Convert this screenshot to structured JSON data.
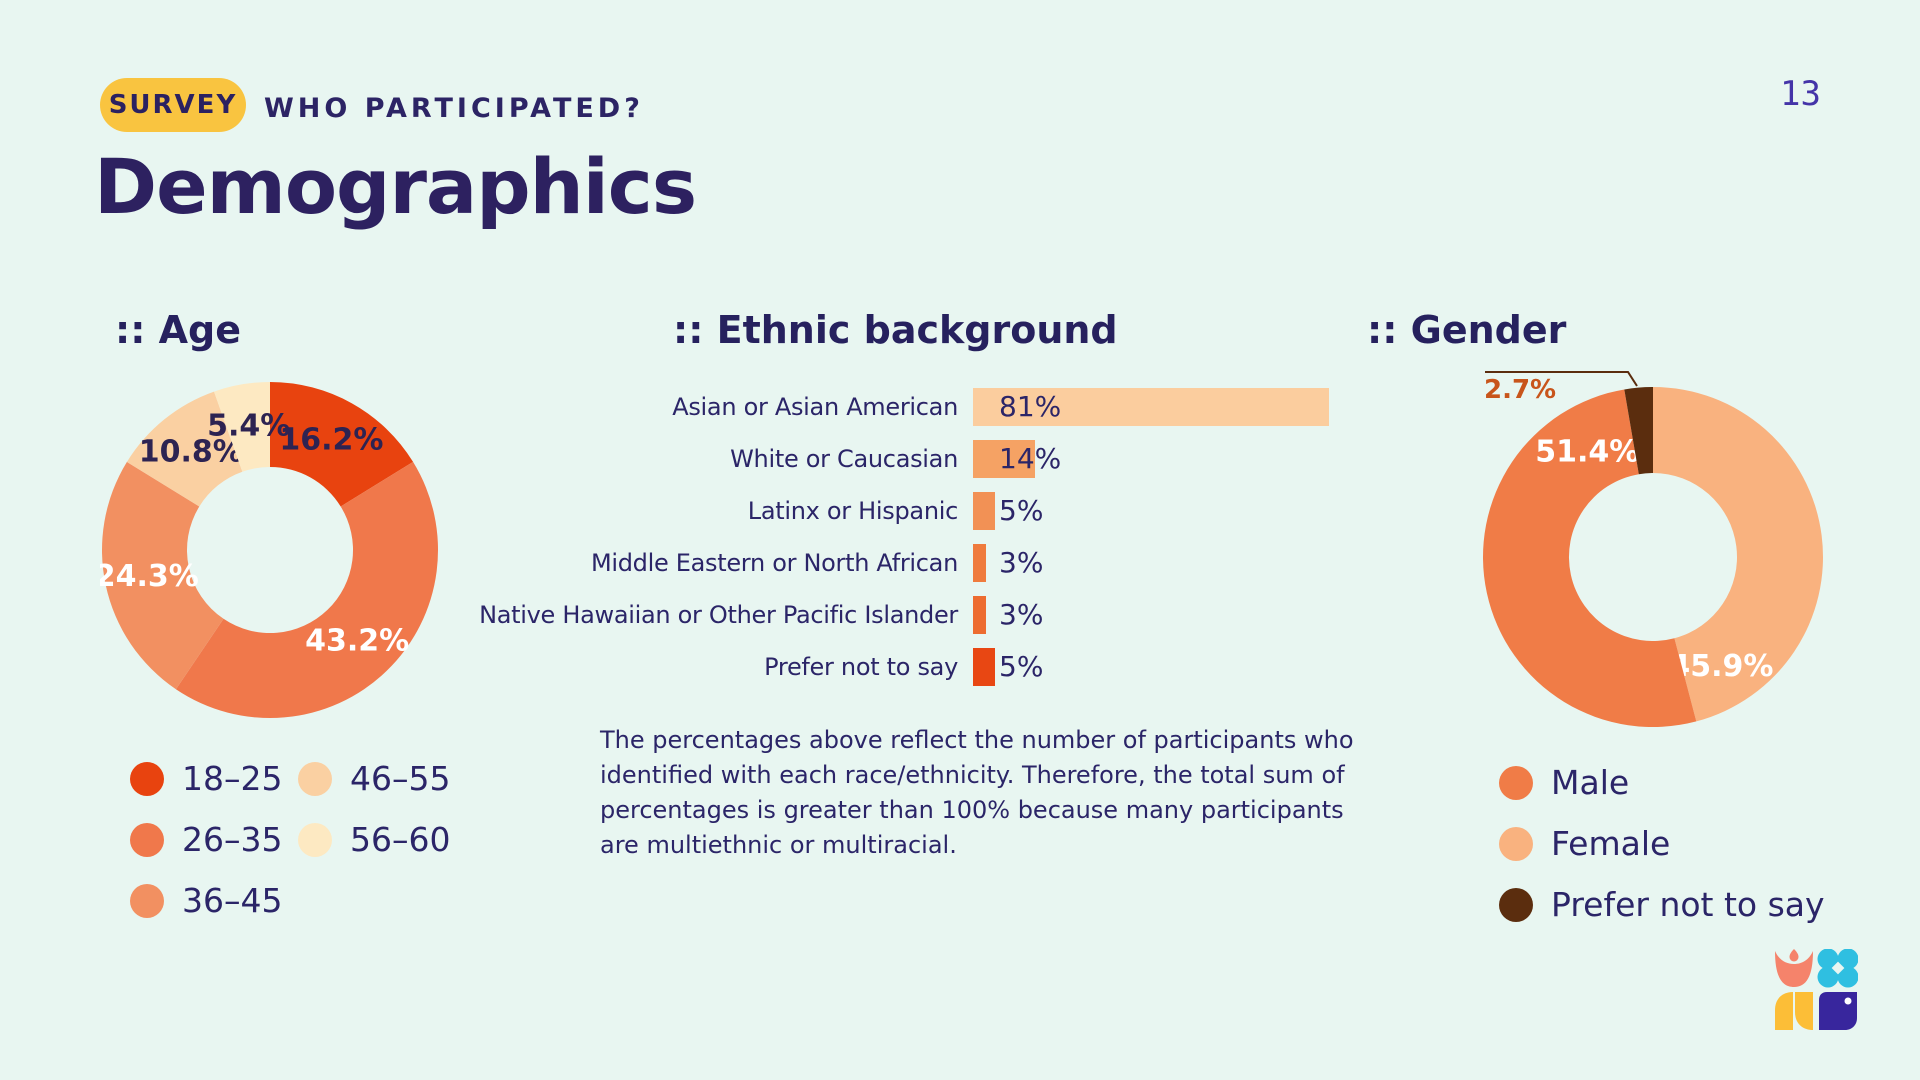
{
  "slide": {
    "badge_label": "SURVEY",
    "kicker": "WHO PARTICIPATED?",
    "title": "Demographics",
    "page_number": "13",
    "background_color": "#E8F6F1",
    "text_color": "#2B2263",
    "badge_color": "#F9C440"
  },
  "chart_data": [
    {
      "id": "age",
      "type": "pie",
      "donut": true,
      "title": ":: Age",
      "categories": [
        "18–25",
        "26–35",
        "36–45",
        "46–55",
        "56–60"
      ],
      "values": [
        16.2,
        43.2,
        24.3,
        10.8,
        5.4
      ],
      "value_labels": [
        "16.2%",
        "43.2%",
        "24.3%",
        "10.8%",
        "5.4%"
      ],
      "colors": [
        "#E8430F",
        "#F0784B",
        "#F29061",
        "#FAD0A2",
        "#FDE9C2"
      ],
      "value_label_colors": [
        "#2D2352",
        "#FFFFFF",
        "#FFFFFF",
        "#2D2352",
        "#2D2352"
      ],
      "start_angle": "12 o'clock, clockwise",
      "legend_position": "bottom, 2 columns"
    },
    {
      "id": "ethnic",
      "type": "bar",
      "orientation": "horizontal",
      "title": ":: Ethnic background",
      "categories": [
        "Asian or Asian American",
        "White or Caucasian",
        "Latinx or Hispanic",
        "Middle Eastern or North African",
        "Native Hawaiian or Other Pacific Islander",
        "Prefer not to say"
      ],
      "values": [
        81,
        14,
        5,
        3,
        3,
        5
      ],
      "value_labels": [
        "81%",
        "14%",
        "5%",
        "3%",
        "3%",
        "5%"
      ],
      "colors": [
        "#FBCD9E",
        "#F5A264",
        "#F29155",
        "#EF7B3D",
        "#ED6C30",
        "#E84713"
      ],
      "xlim": [
        0,
        100
      ],
      "grid": false,
      "note": "The percentages above reflect the number of participants who identified with each race/ethnicity. Therefore, the total sum of percentages is greater than 100% because many participants are multiethnic or multiracial."
    },
    {
      "id": "gender",
      "type": "pie",
      "donut": true,
      "title": ":: Gender",
      "categories": [
        "Female",
        "Male",
        "Prefer not to say"
      ],
      "values": [
        45.9,
        51.4,
        2.7
      ],
      "value_labels": [
        "45.9%",
        "51.4%",
        "2.7%"
      ],
      "colors": [
        "#F9B27F",
        "#F07C47",
        "#5B2D0E"
      ],
      "value_label_colors": [
        "#FFFFFF",
        "#FFFFFF",
        "#C8551B"
      ],
      "outside_label_index": 2,
      "callout_color": "#5B2D0E",
      "legend_order": [
        1,
        0,
        2
      ],
      "start_angle": "12 o'clock, clockwise",
      "legend_position": "bottom"
    }
  ],
  "logo": {
    "name": "tulip-clover-leaves-fish brand mark",
    "colors": {
      "tulip": "#F5836B",
      "clover": "#2FBFE1",
      "leaves": "#FCBE37",
      "fish": "#38269D",
      "fish_eye": "#FFFFFF"
    }
  }
}
